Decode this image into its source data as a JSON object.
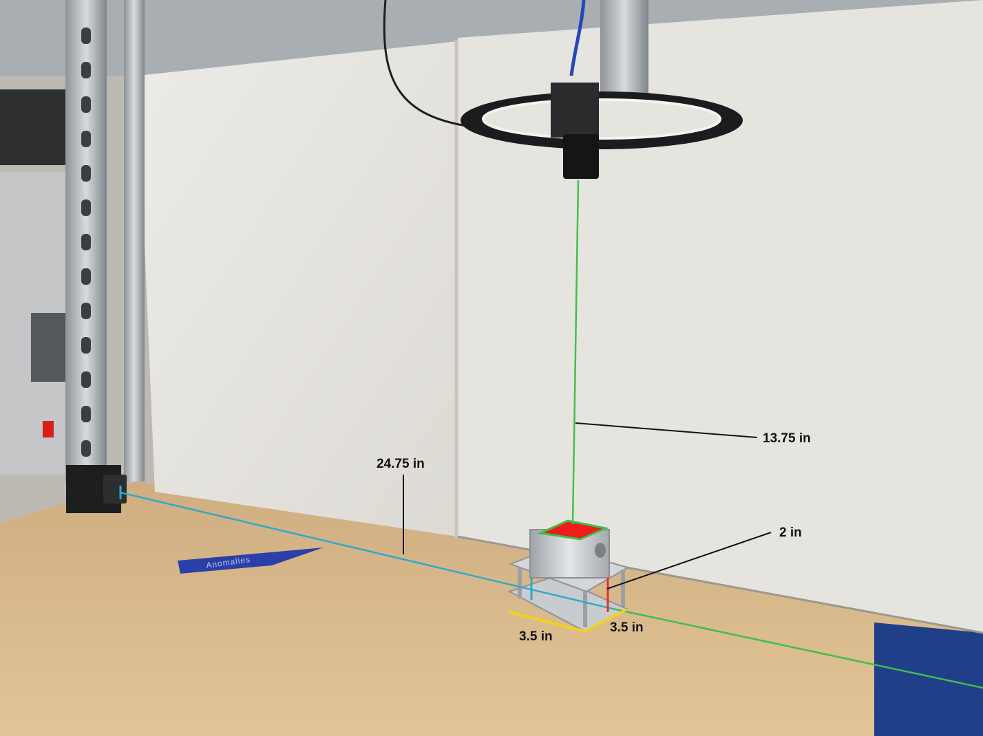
{
  "annotations": {
    "camera_height": "13.75 in",
    "side_camera_distance": "24.75 in",
    "fixture_height": "2 in",
    "fixture_width": "3.5 in",
    "fixture_depth": "3.5 in"
  },
  "tape_label": "Anomalies",
  "colors": {
    "wall": "#e8e6e1",
    "bench": "#d8b98c",
    "top_line": "#3fbf4a",
    "side_line": "#2fa9c9",
    "height_marker": "#e53030",
    "base_outline": "#f0d21e",
    "sample_target": "#ef1c1c",
    "tape": "#2b3fa8"
  }
}
